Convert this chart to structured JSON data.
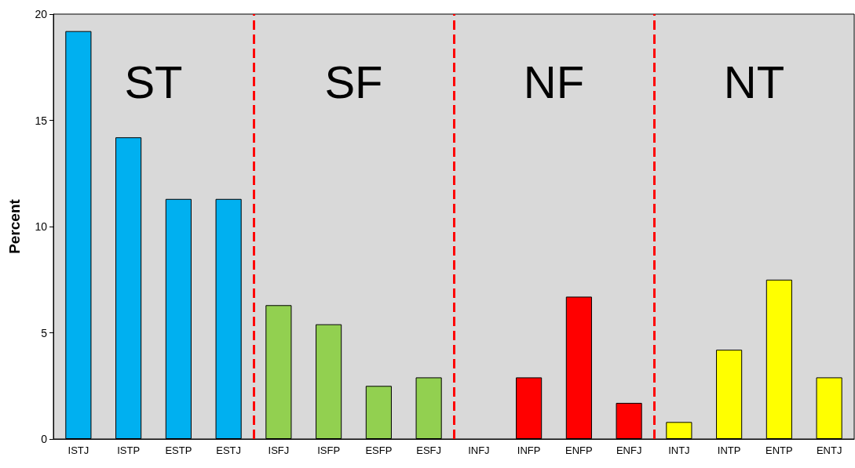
{
  "chart_data": {
    "type": "bar",
    "ylabel": "Percent",
    "categories": [
      "ISTJ",
      "ISTP",
      "ESTP",
      "ESTJ",
      "ISFJ",
      "ISFP",
      "ESFP",
      "ESFJ",
      "INFJ",
      "INFP",
      "ENFP",
      "ENFJ",
      "INTJ",
      "INTP",
      "ENTP",
      "ENTJ"
    ],
    "values": [
      19.2,
      14.2,
      11.3,
      11.3,
      6.3,
      5.4,
      2.5,
      2.9,
      0,
      2.9,
      6.7,
      1.7,
      0.8,
      4.2,
      7.5,
      2.9
    ],
    "colors": [
      "#00b0f0",
      "#00b0f0",
      "#00b0f0",
      "#00b0f0",
      "#92d050",
      "#92d050",
      "#92d050",
      "#92d050",
      "#ff0000",
      "#ff0000",
      "#ff0000",
      "#ff0000",
      "#ffff00",
      "#ffff00",
      "#ffff00",
      "#ffff00"
    ],
    "ylim": [
      0,
      20
    ],
    "yticks": [
      0,
      5,
      10,
      15,
      20
    ],
    "grid": false,
    "annotations": [
      "ST",
      "SF",
      "NF",
      "NT"
    ]
  }
}
